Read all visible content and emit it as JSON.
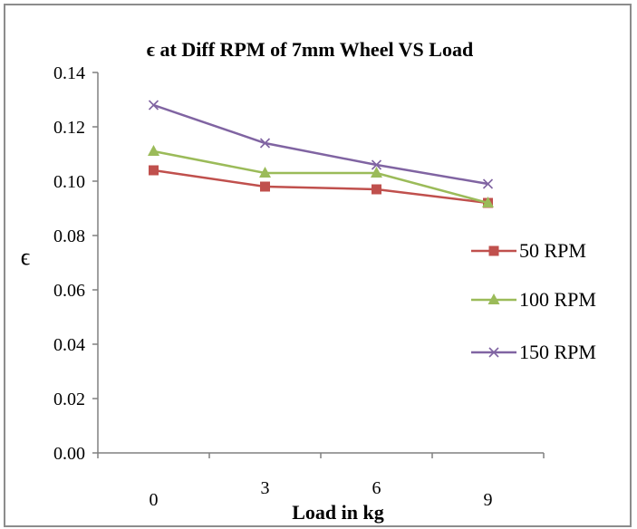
{
  "chart_data": {
    "type": "line",
    "title": "ϵ at Diff RPM of 7mm Wheel VS Load",
    "xlabel": "Load in kg",
    "ylabel": "ϵ",
    "categories": [
      "0",
      "3",
      "6",
      "9"
    ],
    "ylim": [
      0,
      0.14
    ],
    "yticks": [
      "0.00",
      "0.02",
      "0.04",
      "0.06",
      "0.08",
      "0.10",
      "0.12",
      "0.14"
    ],
    "grid": false,
    "legend_position": "right",
    "series": [
      {
        "name": "50 RPM",
        "values": [
          0.104,
          0.098,
          0.097,
          0.092
        ],
        "color": "#c0504d",
        "marker": "square"
      },
      {
        "name": "100 RPM",
        "values": [
          0.111,
          0.103,
          0.103,
          0.092
        ],
        "color": "#9bbb59",
        "marker": "triangle"
      },
      {
        "name": "150 RPM",
        "values": [
          0.128,
          0.114,
          0.106,
          0.099
        ],
        "color": "#8064a2",
        "marker": "x"
      }
    ]
  }
}
